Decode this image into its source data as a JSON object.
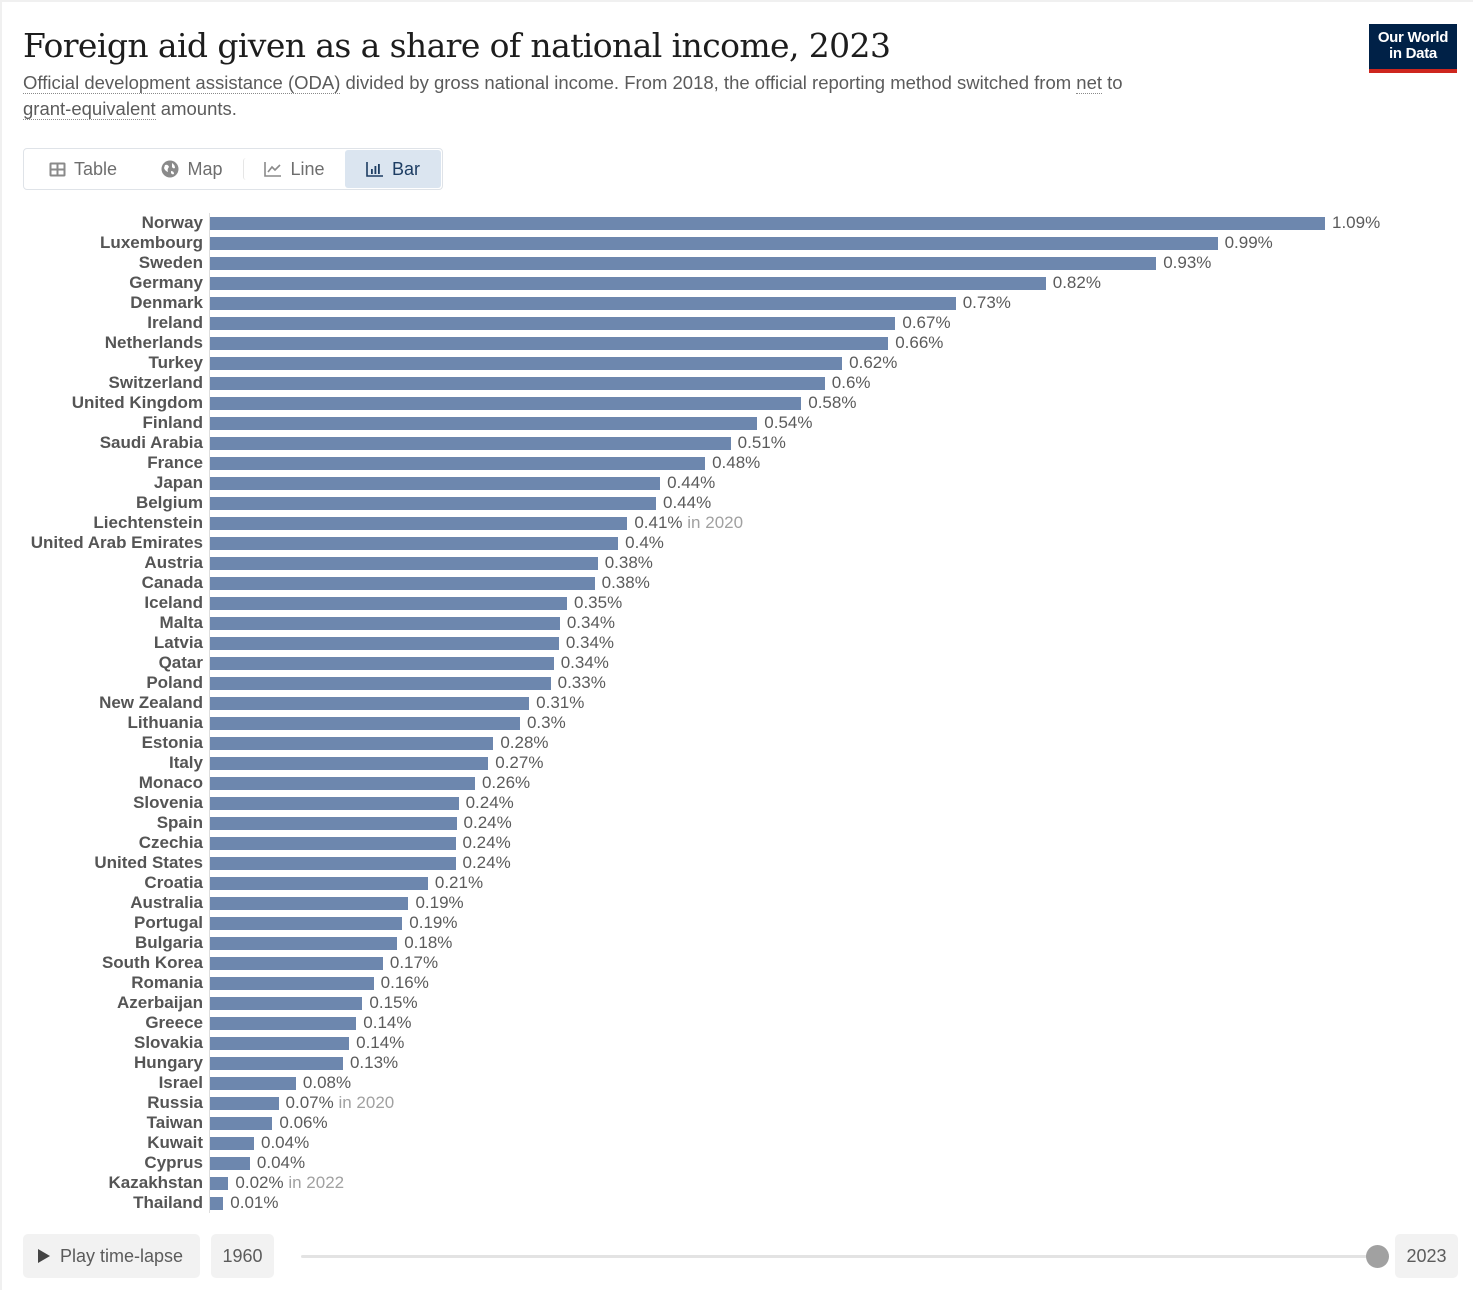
{
  "header": {
    "title": "Foreign aid given as a share of national income, 2023",
    "subtitle_part1": "Official development assistance (ODA)",
    "subtitle_part2": " divided by gross national income. From 2018, the official reporting method switched from ",
    "subtitle_part3": "net",
    "subtitle_part4": " to ",
    "subtitle_part5": "grant-equivalent",
    "subtitle_part6": " amounts.",
    "logo_line1": "Our World",
    "logo_line2": "in Data"
  },
  "tabs": [
    {
      "label": "Table",
      "icon": "table-icon",
      "active": false
    },
    {
      "label": "Map",
      "icon": "globe-icon",
      "active": false
    },
    {
      "label": "Line",
      "icon": "line-chart-icon",
      "active": false
    },
    {
      "label": "Bar",
      "icon": "bar-chart-icon",
      "active": true
    }
  ],
  "colors": {
    "bar": "#6d87ae",
    "logo_bg": "#002147",
    "logo_accent": "#ce261e",
    "active_tab_bg": "#dbe5f0"
  },
  "timeline": {
    "play_label": "Play time-lapse",
    "start_year": "1960",
    "end_year": "2023",
    "selected_fraction": 1.0
  },
  "chart_data": {
    "type": "bar",
    "orientation": "horizontal",
    "title": "Foreign aid given as a share of national income, 2023",
    "xlabel": "",
    "ylabel": "",
    "unit": "%",
    "xlim": [
      0,
      1.09
    ],
    "grid": false,
    "categories": [
      "Norway",
      "Luxembourg",
      "Sweden",
      "Germany",
      "Denmark",
      "Ireland",
      "Netherlands",
      "Turkey",
      "Switzerland",
      "United Kingdom",
      "Finland",
      "Saudi Arabia",
      "France",
      "Japan",
      "Belgium",
      "Liechtenstein",
      "United Arab Emirates",
      "Austria",
      "Canada",
      "Iceland",
      "Malta",
      "Latvia",
      "Qatar",
      "Poland",
      "New Zealand",
      "Lithuania",
      "Estonia",
      "Italy",
      "Monaco",
      "Slovenia",
      "Spain",
      "Czechia",
      "United States",
      "Croatia",
      "Australia",
      "Portugal",
      "Bulgaria",
      "South Korea",
      "Romania",
      "Azerbaijan",
      "Greece",
      "Slovakia",
      "Hungary",
      "Israel",
      "Russia",
      "Taiwan",
      "Kuwait",
      "Cyprus",
      "Kazakhstan",
      "Thailand"
    ],
    "values": [
      1.09,
      0.985,
      0.925,
      0.817,
      0.729,
      0.67,
      0.663,
      0.618,
      0.601,
      0.578,
      0.535,
      0.509,
      0.484,
      0.44,
      0.436,
      0.408,
      0.399,
      0.379,
      0.376,
      0.349,
      0.342,
      0.341,
      0.336,
      0.333,
      0.312,
      0.303,
      0.277,
      0.272,
      0.259,
      0.243,
      0.241,
      0.24,
      0.24,
      0.213,
      0.194,
      0.188,
      0.183,
      0.169,
      0.16,
      0.149,
      0.143,
      0.136,
      0.13,
      0.084,
      0.067,
      0.061,
      0.043,
      0.039,
      0.018,
      0.013
    ],
    "labels": [
      "1.09%",
      "0.99%",
      "0.93%",
      "0.82%",
      "0.73%",
      "0.67%",
      "0.66%",
      "0.62%",
      "0.6%",
      "0.58%",
      "0.54%",
      "0.51%",
      "0.48%",
      "0.44%",
      "0.44%",
      "0.41%",
      "0.4%",
      "0.38%",
      "0.38%",
      "0.35%",
      "0.34%",
      "0.34%",
      "0.34%",
      "0.33%",
      "0.31%",
      "0.3%",
      "0.28%",
      "0.27%",
      "0.26%",
      "0.24%",
      "0.24%",
      "0.24%",
      "0.24%",
      "0.21%",
      "0.19%",
      "0.19%",
      "0.18%",
      "0.17%",
      "0.16%",
      "0.15%",
      "0.14%",
      "0.14%",
      "0.13%",
      "0.08%",
      "0.07%",
      "0.06%",
      "0.04%",
      "0.04%",
      "0.02%",
      "0.01%"
    ],
    "notes": [
      "",
      "",
      "",
      "",
      "",
      "",
      "",
      "",
      "",
      "",
      "",
      "",
      "",
      "",
      "",
      "in 2020",
      "",
      "",
      "",
      "",
      "",
      "",
      "",
      "",
      "",
      "",
      "",
      "",
      "",
      "",
      "",
      "",
      "",
      "",
      "",
      "",
      "",
      "",
      "",
      "",
      "",
      "",
      "",
      "",
      "in 2020",
      "",
      "",
      "",
      "in 2022",
      ""
    ]
  }
}
